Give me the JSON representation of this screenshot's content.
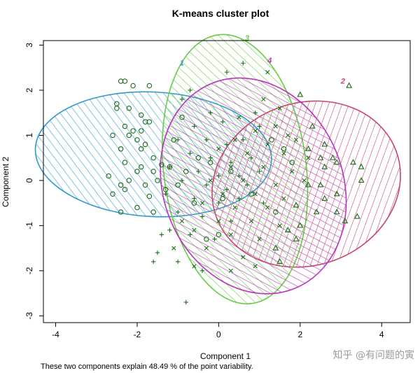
{
  "chart_data": {
    "type": "scatter",
    "title": "K-means cluster plot",
    "xlabel": "Component 1",
    "ylabel": "Component 2",
    "xlim": [
      -4.3,
      4.7
    ],
    "ylim": [
      -3.15,
      3.1
    ],
    "x_ticks": [
      -4,
      -2,
      0,
      2,
      4
    ],
    "y_ticks": [
      -3,
      -2,
      -1,
      0,
      1,
      2,
      3
    ],
    "x_tick_labels": [
      "-4",
      "-2",
      "0",
      "2",
      "4"
    ],
    "y_tick_labels": [
      "-3",
      "-2",
      "-1",
      "0",
      "1",
      "2",
      "3"
    ],
    "caption": "These two components explain 48.49 % of the point variability.",
    "point_color": "#1a6e1a",
    "clusters": [
      {
        "label": "1",
        "marker": "circle",
        "color": "#3399cc",
        "ellipse": {
          "cx": -1.6,
          "cy": 0.58,
          "rx": 2.9,
          "ry": 1.38,
          "angle_deg": -3
        },
        "label_pos": [
          -0.9,
          2.55
        ],
        "points": [
          [
            -2.4,
            2.2
          ],
          [
            -2.3,
            2.2
          ],
          [
            -2.1,
            2.1
          ],
          [
            -1.7,
            2.1
          ],
          [
            -2.5,
            1.7
          ],
          [
            -2.5,
            1.6
          ],
          [
            -2.2,
            1.6
          ],
          [
            -1.9,
            1.45
          ],
          [
            -1.8,
            1.3
          ],
          [
            -1.7,
            1.3
          ],
          [
            -2.3,
            1.2
          ],
          [
            -2.1,
            1.1
          ],
          [
            -1.9,
            1.1
          ],
          [
            -2.6,
            1.0
          ],
          [
            -2.2,
            1.0
          ],
          [
            -2.0,
            0.9
          ],
          [
            -1.8,
            0.8
          ],
          [
            -2.4,
            0.7
          ],
          [
            -1.9,
            0.7
          ],
          [
            -1.6,
            0.5
          ],
          [
            -2.3,
            0.4
          ],
          [
            -1.9,
            0.3
          ],
          [
            -1.4,
            0.35
          ],
          [
            -2.7,
            0.1
          ],
          [
            -2.0,
            0.2
          ],
          [
            -1.6,
            0.2
          ],
          [
            -1.2,
            0.3
          ],
          [
            -2.4,
            -0.1
          ],
          [
            -2.2,
            0.0
          ],
          [
            -1.8,
            -0.1
          ],
          [
            -1.5,
            0.0
          ],
          [
            -2.6,
            -0.3
          ],
          [
            -2.3,
            -0.2
          ],
          [
            -1.7,
            -0.35
          ],
          [
            -1.3,
            -0.2
          ],
          [
            -2.0,
            -0.6
          ],
          [
            -1.6,
            -0.7
          ],
          [
            -2.4,
            -0.7
          ],
          [
            -1.0,
            -0.1
          ],
          [
            -0.8,
            0.2
          ],
          [
            -1.1,
            0.9
          ],
          [
            -0.9,
            1.4
          ],
          [
            -0.5,
            0.5
          ],
          [
            -0.2,
            0.4
          ],
          [
            0.1,
            -0.4
          ],
          [
            0.3,
            0.2
          ],
          [
            -0.6,
            -0.5
          ],
          [
            -0.3,
            -1.3
          ],
          [
            0.0,
            -1.2
          ],
          [
            1.3,
            0.9
          ],
          [
            1.6,
            0.7
          ],
          [
            1.8,
            0.4
          ],
          [
            1.4,
            -0.7
          ],
          [
            0.8,
            -0.3
          ]
        ]
      },
      {
        "label": "2",
        "marker": "triangle",
        "color": "#c9446e",
        "ellipse": {
          "cx": 2.15,
          "cy": -0.08,
          "rx": 2.35,
          "ry": 1.8,
          "angle_deg": 20
        },
        "label_pos": [
          3.05,
          2.15
        ],
        "points": [
          [
            3.2,
            2.1
          ],
          [
            2.0,
            1.9
          ],
          [
            2.3,
            1.2
          ],
          [
            2.6,
            0.8
          ],
          [
            2.2,
            0.7
          ],
          [
            2.5,
            0.5
          ],
          [
            2.8,
            0.5
          ],
          [
            2.9,
            0.4
          ],
          [
            3.3,
            0.4
          ],
          [
            2.6,
            0.3
          ],
          [
            3.5,
            0.3
          ],
          [
            2.2,
            -0.1
          ],
          [
            2.5,
            -0.1
          ],
          [
            3.5,
            0.0
          ],
          [
            2.9,
            -0.3
          ],
          [
            2.6,
            -0.4
          ],
          [
            2.4,
            -0.7
          ],
          [
            2.9,
            -0.7
          ],
          [
            3.1,
            -0.9
          ],
          [
            3.4,
            -0.8
          ],
          [
            2.0,
            -1.0
          ],
          [
            1.7,
            -1.1
          ],
          [
            1.9,
            -1.3
          ],
          [
            1.4,
            -1.5
          ],
          [
            1.5,
            -1.8
          ],
          [
            1.9,
            -0.55
          ]
        ]
      },
      {
        "label": "3",
        "marker": "plus",
        "color": "#66cc44",
        "ellipse": {
          "cx": 0.4,
          "cy": 0.25,
          "rx": 1.75,
          "ry": 3.0,
          "angle_deg": 7
        },
        "label_pos": [
          0.7,
          3.1
        ],
        "points": [
          [
            0.6,
            2.6
          ],
          [
            0.2,
            2.4
          ],
          [
            -0.7,
            2.0
          ],
          [
            -0.9,
            1.8
          ],
          [
            -0.2,
            1.5
          ],
          [
            0.1,
            1.3
          ],
          [
            -0.6,
            1.2
          ],
          [
            0.9,
            1.5
          ],
          [
            1.0,
            1.2
          ],
          [
            -1.0,
            0.9
          ],
          [
            -0.3,
            0.9
          ],
          [
            0.2,
            0.8
          ],
          [
            0.6,
            0.9
          ],
          [
            -0.7,
            0.6
          ],
          [
            -0.2,
            0.5
          ],
          [
            0.3,
            0.4
          ],
          [
            0.8,
            0.5
          ],
          [
            -1.2,
            0.3
          ],
          [
            -0.5,
            0.2
          ],
          [
            0.0,
            0.1
          ],
          [
            0.5,
            0.1
          ],
          [
            1.0,
            0.2
          ],
          [
            -0.9,
            0.0
          ],
          [
            -0.3,
            -0.1
          ],
          [
            0.2,
            -0.2
          ],
          [
            0.7,
            -0.1
          ],
          [
            -1.3,
            -0.3
          ],
          [
            -0.6,
            -0.4
          ],
          [
            0.0,
            -0.5
          ],
          [
            0.5,
            -0.4
          ],
          [
            1.1,
            -0.5
          ],
          [
            -1.0,
            -0.7
          ],
          [
            -0.4,
            -0.8
          ],
          [
            0.3,
            -0.9
          ],
          [
            -1.2,
            -1.1
          ],
          [
            -0.7,
            -1.2
          ],
          [
            -0.1,
            -1.3
          ],
          [
            -1.5,
            -1.6
          ],
          [
            -1.0,
            -1.8
          ],
          [
            -0.4,
            -2.0
          ],
          [
            -1.6,
            -1.8
          ],
          [
            -1.4,
            -1.2
          ],
          [
            -0.8,
            -2.7
          ]
        ]
      },
      {
        "label": "4",
        "marker": "cross",
        "color": "#bb33bb",
        "ellipse": {
          "cx": 0.85,
          "cy": -0.12,
          "rx": 2.2,
          "ry": 2.45,
          "angle_deg": 22
        },
        "label_pos": [
          1.25,
          2.6
        ],
        "points": [
          [
            1.2,
            2.4
          ],
          [
            1.1,
            1.8
          ],
          [
            1.5,
            1.6
          ],
          [
            0.5,
            1.4
          ],
          [
            1.4,
            1.2
          ],
          [
            0.9,
            1.1
          ],
          [
            1.7,
            1.0
          ],
          [
            0.4,
            0.9
          ],
          [
            1.2,
            0.8
          ],
          [
            0.0,
            0.7
          ],
          [
            0.7,
            0.6
          ],
          [
            1.6,
            0.6
          ],
          [
            0.3,
            0.3
          ],
          [
            1.1,
            0.3
          ],
          [
            1.8,
            0.2
          ],
          [
            -0.2,
            0.0
          ],
          [
            0.6,
            0.0
          ],
          [
            1.4,
            -0.1
          ],
          [
            2.1,
            0.0
          ],
          [
            0.1,
            -0.3
          ],
          [
            0.9,
            -0.3
          ],
          [
            1.6,
            -0.4
          ],
          [
            -0.4,
            -0.5
          ],
          [
            0.4,
            -0.6
          ],
          [
            1.2,
            -0.6
          ],
          [
            0.0,
            -0.9
          ],
          [
            0.8,
            -0.9
          ],
          [
            1.5,
            -1.0
          ],
          [
            -0.6,
            -1.1
          ],
          [
            0.3,
            -1.2
          ],
          [
            1.0,
            -1.3
          ],
          [
            -0.3,
            -1.5
          ],
          [
            0.6,
            -1.7
          ],
          [
            -1.1,
            -1.5
          ],
          [
            -0.6,
            -1.9
          ],
          [
            0.3,
            -2.0
          ],
          [
            0.9,
            -1.9
          ],
          [
            2.2,
            0.5
          ],
          [
            1.9,
            0.9
          ],
          [
            -0.9,
            -0.9
          ]
        ]
      }
    ]
  },
  "watermark": "知乎 @有问题的寅"
}
